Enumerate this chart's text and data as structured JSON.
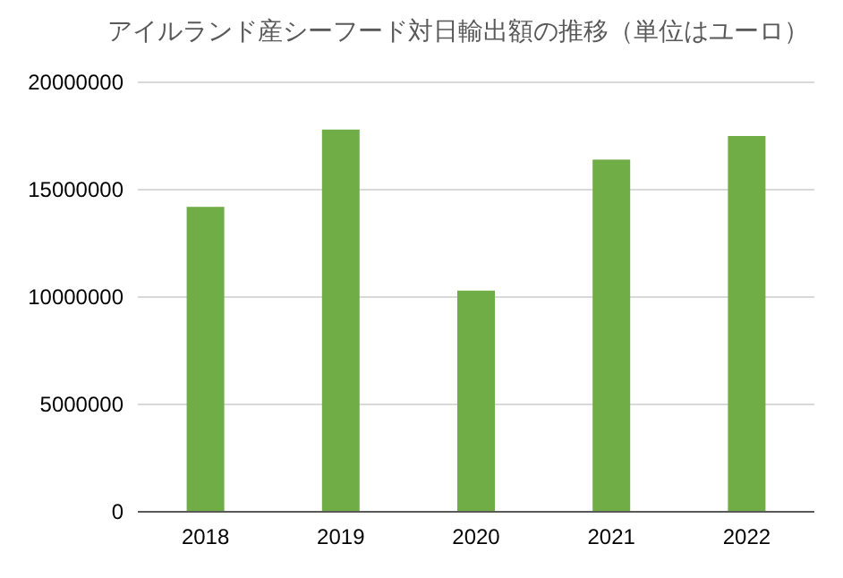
{
  "chart_data": {
    "type": "bar",
    "title": "アイルランド産シーフード対日輸出額の推移（単位はユーロ）",
    "categories": [
      "2018",
      "2019",
      "2020",
      "2021",
      "2022"
    ],
    "values": [
      14200000,
      17800000,
      10300000,
      16400000,
      17500000
    ],
    "color": "#70ad47",
    "ylim": [
      0,
      20000000
    ],
    "yticks": [
      0,
      5000000,
      10000000,
      15000000,
      20000000
    ],
    "grid": "y"
  }
}
